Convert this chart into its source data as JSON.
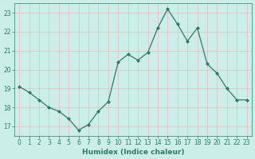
{
  "x": [
    0,
    1,
    2,
    3,
    4,
    5,
    6,
    7,
    8,
    9,
    10,
    11,
    12,
    13,
    14,
    15,
    16,
    17,
    18,
    19,
    20,
    21,
    22,
    23
  ],
  "y": [
    19.1,
    18.8,
    18.4,
    18.0,
    17.8,
    17.4,
    16.8,
    17.1,
    17.8,
    18.3,
    20.4,
    20.8,
    20.5,
    20.9,
    22.2,
    23.2,
    22.4,
    21.5,
    22.2,
    20.3,
    19.8,
    19.0,
    18.4,
    18.4
  ],
  "xlabel": "Humidex (Indice chaleur)",
  "xlim": [
    -0.5,
    23.5
  ],
  "ylim": [
    16.5,
    23.5
  ],
  "yticks": [
    17,
    18,
    19,
    20,
    21,
    22,
    23
  ],
  "xticks": [
    0,
    1,
    2,
    3,
    4,
    5,
    6,
    7,
    8,
    9,
    10,
    11,
    12,
    13,
    14,
    15,
    16,
    17,
    18,
    19,
    20,
    21,
    22,
    23
  ],
  "line_color": "#2d7a6a",
  "marker": "D",
  "marker_size": 2.0,
  "bg_color": "#cceee8",
  "grid_color_major": "#e8b8b8",
  "grid_color_minor": "#d8e8e8",
  "tick_color": "#2d7a6a",
  "xlabel_color": "#2d7a6a",
  "tick_fontsize": 5.5,
  "xlabel_fontsize": 6.5
}
